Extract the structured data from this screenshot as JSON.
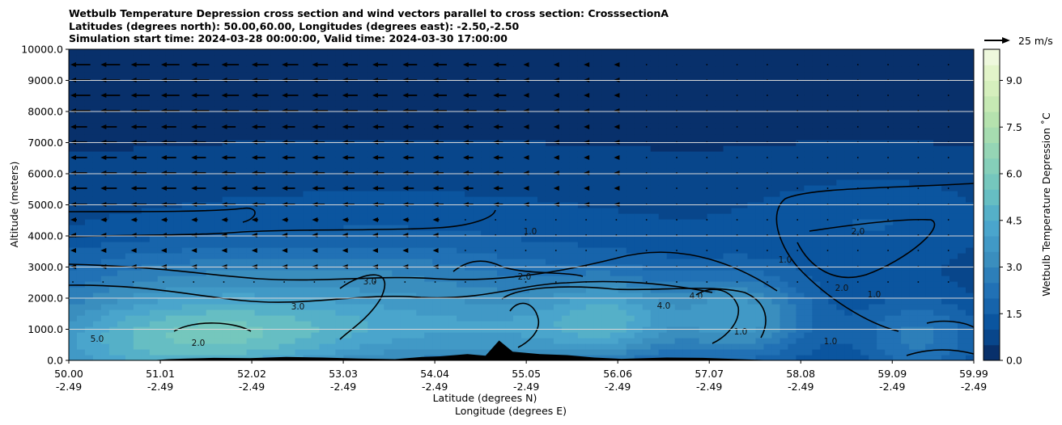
{
  "title_lines": [
    "Wetbulb Temperature Depression cross section and wind vectors parallel to cross section: CrosssectionA",
    "Latitudes (degrees north): 50.00,60.00, Longitudes (degrees east): -2.50,-2.50",
    "Simulation start time: 2024-03-28 00:00:00, Valid time: 2024-03-30 17:00:00"
  ],
  "chart_data": {
    "type": "heatmap",
    "xlabel_lines": [
      "Latitude (degrees N)",
      "Longitude (degrees E)"
    ],
    "ylabel": "Altitude (meters)",
    "x_ticks": [
      {
        "lat": "50.00",
        "lon": "-2.49"
      },
      {
        "lat": "51.01",
        "lon": "-2.49"
      },
      {
        "lat": "52.02",
        "lon": "-2.49"
      },
      {
        "lat": "53.03",
        "lon": "-2.49"
      },
      {
        "lat": "54.04",
        "lon": "-2.49"
      },
      {
        "lat": "55.05",
        "lon": "-2.49"
      },
      {
        "lat": "56.06",
        "lon": "-2.49"
      },
      {
        "lat": "57.07",
        "lon": "-2.49"
      },
      {
        "lat": "58.08",
        "lon": "-2.49"
      },
      {
        "lat": "59.09",
        "lon": "-2.49"
      },
      {
        "lat": "59.99",
        "lon": "-2.49"
      }
    ],
    "x_range": [
      50.0,
      59.99
    ],
    "y_ticks": [
      "0.0",
      "1000.0",
      "2000.0",
      "3000.0",
      "4000.0",
      "5000.0",
      "6000.0",
      "7000.0",
      "8000.0",
      "9000.0",
      "10000.0"
    ],
    "ylim": [
      0,
      10000
    ],
    "grid": "horizontal",
    "colorbar": {
      "label": "Wetbulb Temperature Depression $^\\circ$C",
      "label_display": "Wetbulb Temperature Depression ˚C",
      "range": [
        0,
        10
      ],
      "ticks": [
        "0.0",
        "1.5",
        "3.0",
        "4.5",
        "6.0",
        "7.5",
        "9.0"
      ],
      "colors": [
        "#08306b",
        "#08468b",
        "#0b559f",
        "#1764ab",
        "#2171b5",
        "#2d7fb9",
        "#3a8ebe",
        "#4199c6",
        "#4aa5cc",
        "#55b0c8",
        "#66bec3",
        "#75c7bd",
        "#85cfb9",
        "#95d5b5",
        "#a6dcb0",
        "#b5e2ae",
        "#c6e9b4",
        "#d5efbd",
        "#e2f4c9",
        "#eef8dd"
      ]
    },
    "wind_reference": "25 m/s",
    "contour_levels": [
      "1.0",
      "2.0",
      "3.0",
      "4.0",
      "5.0"
    ]
  }
}
